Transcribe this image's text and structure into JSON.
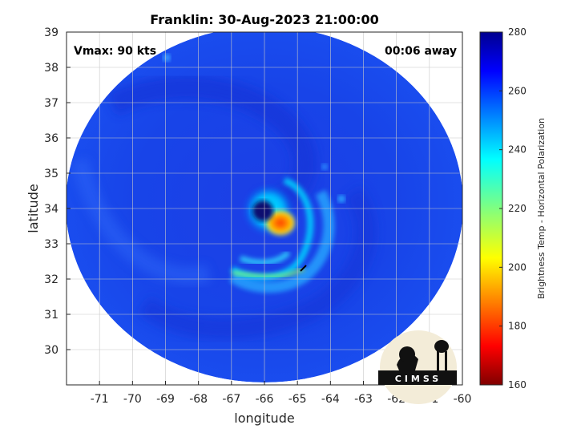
{
  "chart_data": {
    "type": "heatmap",
    "title": "Franklin: 30-Aug-2023 21:00:00",
    "xlabel": "longitude",
    "ylabel": "latitude",
    "xlim": [
      -72,
      -60
    ],
    "ylim": [
      29,
      39
    ],
    "xticks": [
      -71,
      -70,
      -69,
      -68,
      -67,
      -66,
      -65,
      -64,
      -63,
      -62,
      -61,
      -60
    ],
    "yticks": [
      30,
      31,
      32,
      33,
      34,
      35,
      36,
      37,
      38,
      39
    ],
    "grid": true,
    "annotations": {
      "vmax": "Vmax: 90 kts",
      "time_offset": "00:06 away"
    },
    "storm_center": {
      "lon": -66.1,
      "lat": 33.9
    },
    "colorbar": {
      "label": "Brightness Temp - Horizontal Polarization",
      "range": [
        160,
        280
      ],
      "ticks": [
        160,
        180,
        200,
        220,
        240,
        260,
        280
      ],
      "colormap": "jet"
    },
    "logo_text": "CIMSS"
  }
}
